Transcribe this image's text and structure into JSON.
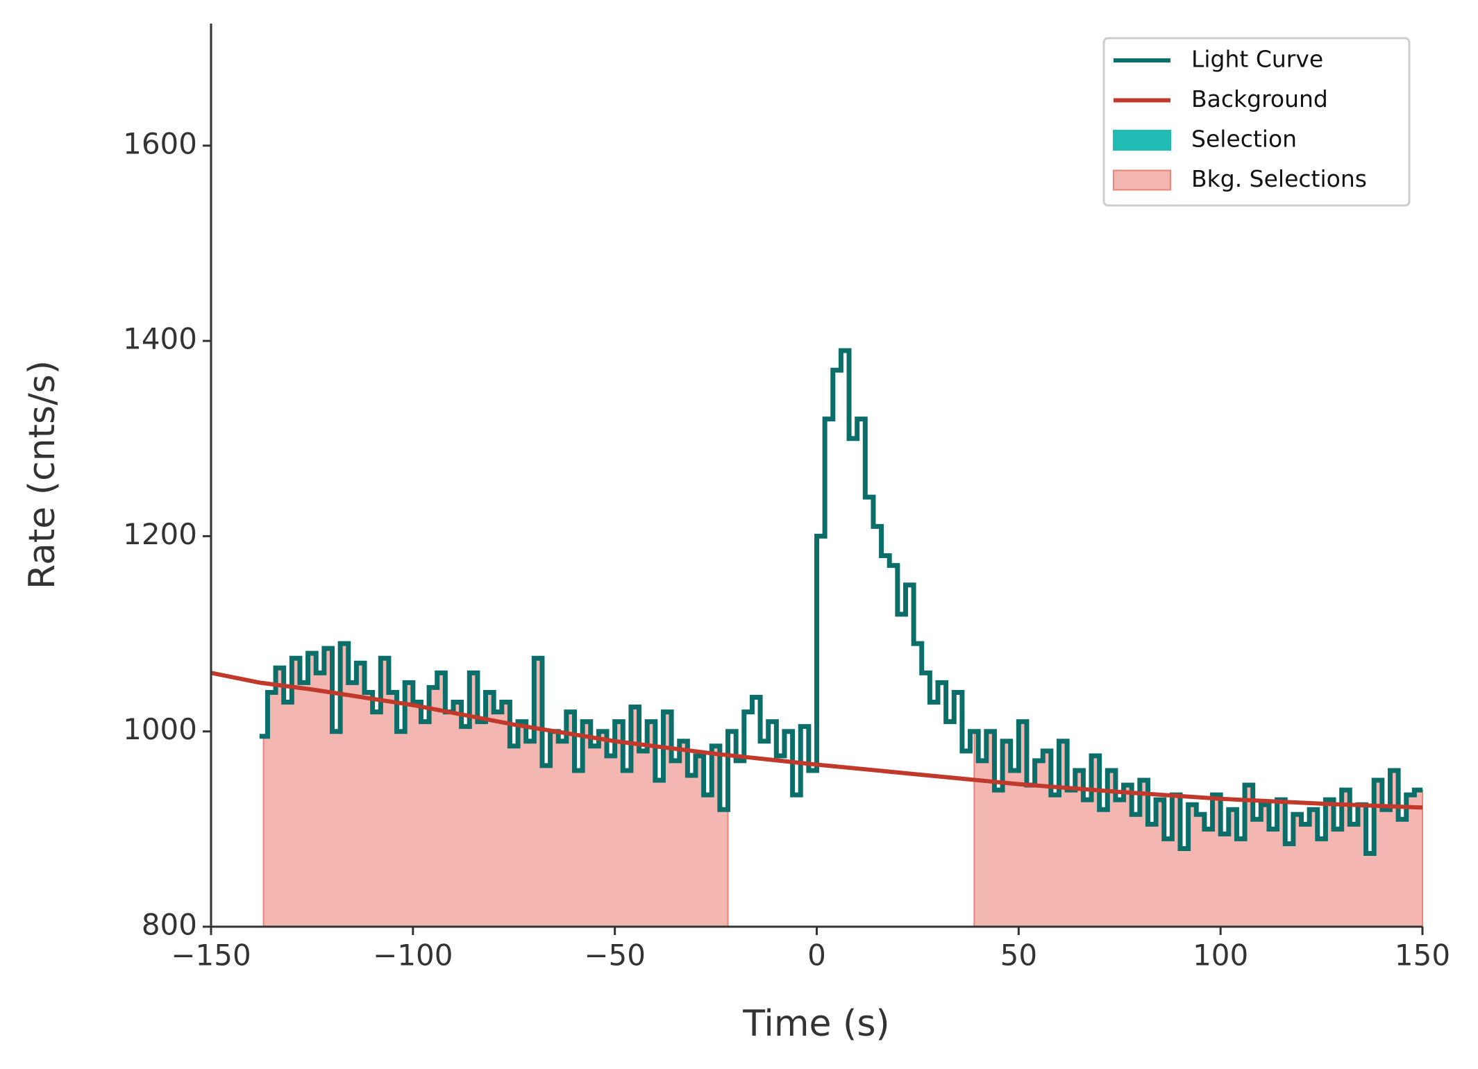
{
  "chart_data": {
    "type": "step",
    "xlabel": "Time (s)",
    "ylabel": "Rate (cnts/s)",
    "xlim": [
      -150,
      150
    ],
    "ylim": [
      800,
      1725
    ],
    "xticks": [
      {
        "value": -150,
        "label": "−150"
      },
      {
        "value": -100,
        "label": "−100"
      },
      {
        "value": -50,
        "label": "−50"
      },
      0,
      50,
      100,
      150
    ],
    "yticks": [
      800,
      1000,
      1200,
      1400,
      1600
    ],
    "legend": "upper right",
    "series": [
      {
        "name": "Light Curve",
        "color": "#0b6e69",
        "bins": [
          -138,
          -136,
          -134,
          -132,
          -130,
          -128,
          -126,
          -124,
          -122,
          -120,
          -118,
          -116,
          -114,
          -112,
          -110,
          -108,
          -106,
          -104,
          -102,
          -100,
          -98,
          -96,
          -94,
          -92,
          -90,
          -88,
          -86,
          -84,
          -82,
          -80,
          -78,
          -76,
          -74,
          -72,
          -70,
          -68,
          -66,
          -64,
          -62,
          -60,
          -58,
          -56,
          -54,
          -52,
          -50,
          -48,
          -46,
          -44,
          -42,
          -40,
          -38,
          -36,
          -34,
          -32,
          -30,
          -28,
          -26,
          -24,
          -22,
          -20,
          -18,
          -16,
          -14,
          -12,
          -10,
          -8,
          -6,
          -4,
          -2,
          0,
          2,
          4,
          6,
          8,
          10,
          12,
          14,
          16,
          18,
          20,
          22,
          24,
          26,
          28,
          30,
          32,
          34,
          36,
          38,
          40,
          42,
          44,
          46,
          48,
          50,
          52,
          54,
          56,
          58,
          60,
          62,
          64,
          66,
          68,
          70,
          72,
          74,
          76,
          78,
          80,
          82,
          84,
          86,
          88,
          90,
          92,
          94,
          96,
          98,
          100,
          102,
          104,
          106,
          108,
          110,
          112,
          114,
          116,
          118,
          120,
          122,
          124,
          126,
          128,
          130,
          132,
          134,
          136,
          138,
          140,
          142,
          144,
          146,
          148,
          150
        ],
        "values": [
          995,
          1040,
          1065,
          1030,
          1075,
          1050,
          1080,
          1060,
          1085,
          1000,
          1090,
          1050,
          1070,
          1040,
          1020,
          1075,
          1040,
          1000,
          1050,
          1030,
          1010,
          1045,
          1060,
          1020,
          1030,
          1005,
          1060,
          1010,
          1040,
          1020,
          1030,
          985,
          1010,
          990,
          1075,
          965,
          1000,
          990,
          1020,
          960,
          1010,
          985,
          1000,
          975,
          1010,
          960,
          1025,
          980,
          1010,
          950,
          1020,
          970,
          990,
          955,
          975,
          935,
          985,
          920,
          1000,
          970,
          1020,
          1035,
          990,
          1010,
          975,
          1000,
          935,
          1005,
          960,
          1200,
          1320,
          1370,
          1390,
          1300,
          1320,
          1240,
          1210,
          1180,
          1170,
          1120,
          1150,
          1090,
          1060,
          1030,
          1050,
          1010,
          1040,
          980,
          1000,
          970,
          1000,
          940,
          990,
          960,
          1010,
          945,
          970,
          980,
          935,
          990,
          940,
          960,
          930,
          975,
          920,
          960,
          930,
          945,
          915,
          950,
          905,
          930,
          890,
          935,
          880,
          925,
          915,
          900,
          935,
          895,
          920,
          890,
          945,
          910,
          925,
          900,
          930,
          885,
          915,
          905,
          920,
          890,
          930,
          900,
          940,
          905,
          925,
          875,
          950,
          920,
          960,
          910,
          935,
          940
        ]
      },
      {
        "name": "Background",
        "color": "#c0392b",
        "x": [
          -150,
          -138,
          -125,
          -100,
          -75,
          -50,
          -25,
          0,
          25,
          50,
          75,
          100,
          125,
          150
        ],
        "values": [
          1060,
          1050,
          1043,
          1027,
          1007,
          990,
          977,
          966,
          956,
          946,
          938,
          931,
          926,
          922
        ]
      }
    ],
    "selections": [
      {
        "name": "Selection",
        "color": "#20bcb4"
      },
      {
        "name": "Bkg. Selections",
        "color": "#f4b6b0",
        "edge_color": "#e8847a",
        "intervals": [
          [
            -137,
            -22
          ],
          [
            39,
            150
          ]
        ]
      }
    ]
  }
}
